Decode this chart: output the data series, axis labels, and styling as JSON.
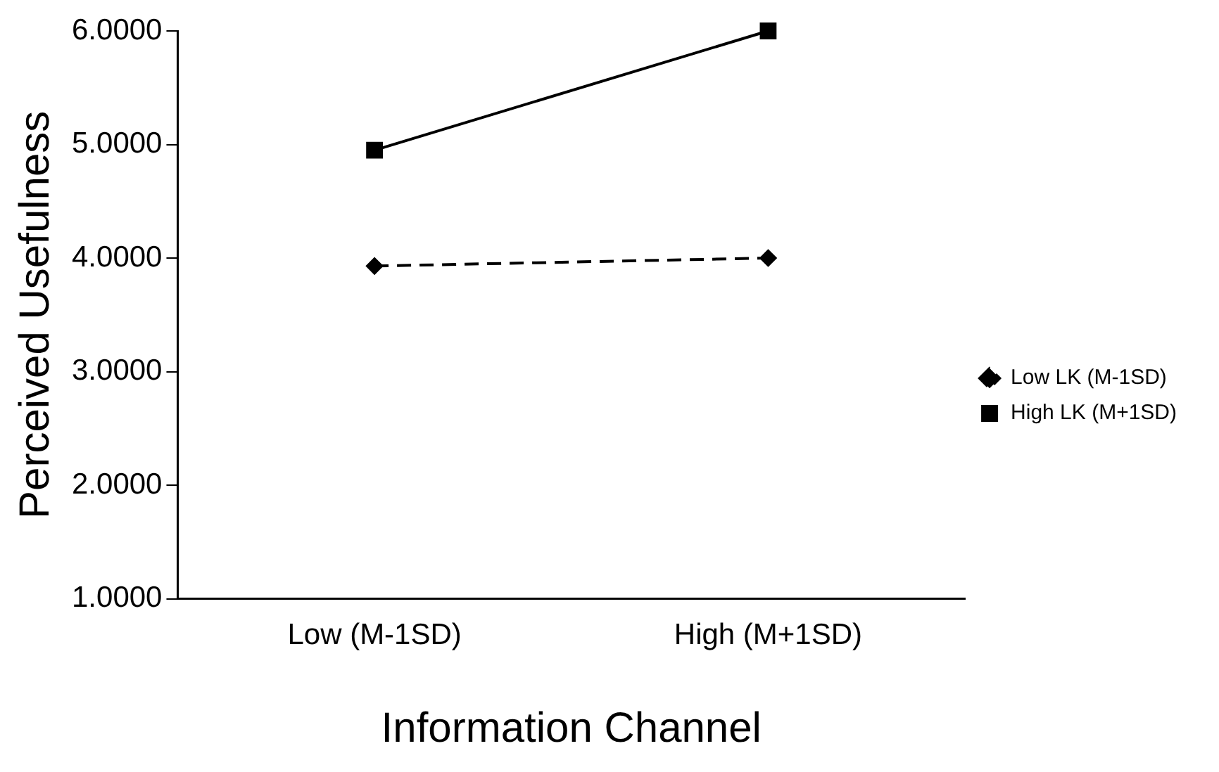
{
  "chart_data": {
    "type": "line",
    "xlabel": "Information Channel",
    "ylabel": "Perceived Usefulness",
    "categories": [
      "Low (M-1SD)",
      "High (M+1SD)"
    ],
    "series": [
      {
        "name": "Low LK (M-1SD)",
        "color": "#000000",
        "values": [
          3.93,
          4.0
        ],
        "marker": "diamond",
        "line_style": "dashed"
      },
      {
        "name": "High LK (M+1SD)",
        "color": "#000000",
        "values": [
          4.95,
          6.0
        ],
        "marker": "square",
        "line_style": "solid"
      }
    ],
    "ylim": [
      1,
      6
    ],
    "yticks": [
      {
        "value": 1,
        "label": "1.0000"
      },
      {
        "value": 2,
        "label": "2.0000"
      },
      {
        "value": 3,
        "label": "3.0000"
      },
      {
        "value": 4,
        "label": "4.0000"
      },
      {
        "value": 5,
        "label": "5.0000"
      },
      {
        "value": 6,
        "label": "6.0000"
      }
    ],
    "grid": false,
    "legend": "right"
  }
}
